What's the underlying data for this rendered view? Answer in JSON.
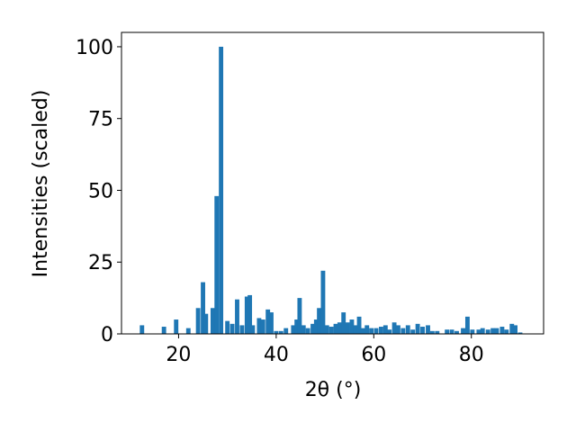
{
  "chart_data": {
    "type": "bar",
    "xlabel": "2θ (°)",
    "ylabel": "Intensities (scaled)",
    "x": [
      12.5,
      17,
      19.5,
      22,
      24,
      25,
      25.6,
      27,
      27.8,
      28.7,
      30,
      31,
      32,
      33,
      34,
      34.6,
      35.2,
      36.5,
      37.3,
      38.3,
      39,
      40,
      41,
      42,
      43.5,
      44.2,
      44.8,
      45.6,
      46.5,
      47.5,
      48.2,
      48.8,
      49.6,
      50.4,
      51.3,
      52.2,
      53,
      53.8,
      54.6,
      55.5,
      56.2,
      57,
      57.8,
      58.6,
      59.5,
      60.5,
      61.5,
      62.4,
      63.2,
      64.2,
      65,
      66,
      67,
      68,
      69,
      70,
      71.1,
      72,
      73,
      75,
      76,
      77,
      78.3,
      79.2,
      80.2,
      81.5,
      82.3,
      83.4,
      84.4,
      85.2,
      86.3,
      87.2,
      88.3,
      89,
      90
    ],
    "values": [
      3,
      2.5,
      5,
      2,
      9,
      18,
      7,
      9,
      48,
      100,
      4.5,
      3.5,
      12,
      3,
      13,
      13.5,
      3,
      5.5,
      5,
      8.5,
      7.5,
      1,
      1,
      2,
      3,
      5,
      12.5,
      3,
      2,
      3.5,
      5,
      9,
      22,
      3,
      2.5,
      3.5,
      4,
      7.5,
      4,
      5,
      3,
      6,
      2,
      3,
      2,
      2,
      2.5,
      3,
      1.5,
      4,
      3,
      2,
      3,
      1.5,
      3.5,
      2.5,
      3,
      1,
      1,
      1.5,
      1.5,
      1,
      2,
      6,
      1.5,
      1.5,
      2,
      1.5,
      2,
      2,
      2.5,
      1.5,
      3.5,
      3,
      0.5
    ],
    "color": "#1f77b4",
    "xlim": [
      8.3,
      94.8
    ],
    "xticks": [
      20,
      40,
      60,
      80
    ],
    "ylim": [
      0,
      105
    ],
    "yticks": [
      0,
      25,
      50,
      75,
      100
    ]
  }
}
